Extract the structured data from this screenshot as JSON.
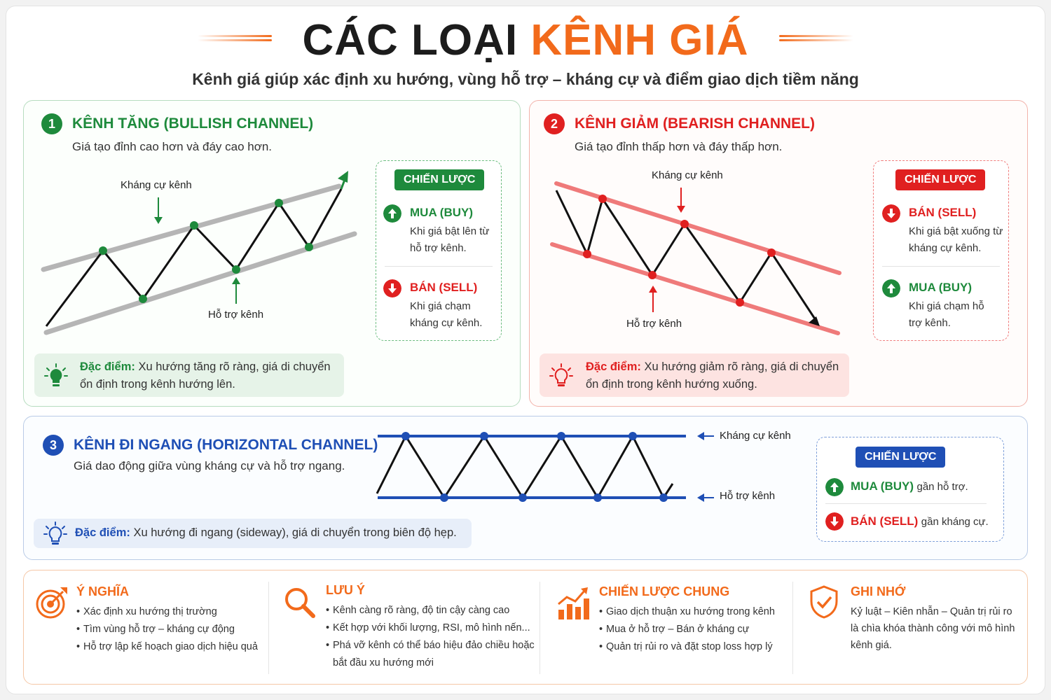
{
  "header": {
    "title_part1": "CÁC LOẠI",
    "title_part2": "KÊNH GIÁ",
    "subtitle": "Kênh giá giúp xác định xu hướng, vùng hỗ trợ – kháng cự và điểm giao dịch tiềm năng"
  },
  "colors": {
    "accent": "#f26a1b",
    "green": "#1e8a3c",
    "red": "#e02020",
    "blue": "#1f4fb5"
  },
  "bullish": {
    "number": "1",
    "title": "KÊNH TĂNG (BULLISH CHANNEL)",
    "description": "Giá tạo đỉnh cao hơn và đáy cao hơn.",
    "resistance_label": "Kháng cự kênh",
    "support_label": "Hỗ trợ kênh",
    "strategy": {
      "badge": "CHIẾN LƯỢC",
      "item1_title": "MUA (BUY)",
      "item1_text": "Khi giá bật lên từ hỗ trợ kênh.",
      "item2_title": "BÁN (SELL)",
      "item2_text": "Khi giá chạm kháng cự kênh."
    },
    "feature_label": "Đặc điểm:",
    "feature_text": "Xu hướng tăng rõ ràng, giá di chuyển ổn định trong kênh hướng lên."
  },
  "bearish": {
    "number": "2",
    "title": "KÊNH GIẢM (BEARISH CHANNEL)",
    "description": "Giá tạo đỉnh thấp hơn và đáy thấp hơn.",
    "resistance_label": "Kháng cự kênh",
    "support_label": "Hỗ trợ kênh",
    "strategy": {
      "badge": "CHIẾN LƯỢC",
      "item1_title": "BÁN (SELL)",
      "item1_text": "Khi giá bật xuống từ kháng cự kênh.",
      "item2_title": "MUA (BUY)",
      "item2_text": "Khi giá chạm hỗ trợ kênh."
    },
    "feature_label": "Đặc điểm:",
    "feature_text": "Xu hướng giảm rõ ràng, giá di chuyển ổn định trong kênh hướng xuống."
  },
  "horizontal": {
    "number": "3",
    "title": "KÊNH ĐI NGANG (HORIZONTAL CHANNEL)",
    "description": "Giá dao động giữa vùng kháng cự và hỗ trợ ngang.",
    "resistance_label": "Kháng cự kênh",
    "support_label": "Hỗ trợ kênh",
    "strategy": {
      "badge": "CHIẾN LƯỢC",
      "item1_title": "MUA (BUY)",
      "item1_text": "gần hỗ trợ.",
      "item2_title": "BÁN (SELL)",
      "item2_text": "gần kháng cự."
    },
    "feature_label": "Đặc điểm:",
    "feature_text": "Xu hướng đi ngang (sideway), giá di chuyển trong biên độ hẹp."
  },
  "summary": {
    "meaning": {
      "title": "Ý NGHĨA",
      "items": [
        "Xác định xu hướng thị trường",
        "Tìm vùng hỗ trợ – kháng cự động",
        "Hỗ trợ lập kế hoạch giao dịch hiệu quả"
      ]
    },
    "note": {
      "title": "LƯU Ý",
      "items": [
        "Kênh càng rõ ràng, độ tin cậy càng cao",
        "Kết hợp với khối lượng, RSI, mô hình nến...",
        "Phá vỡ kênh có thể báo hiệu đảo chiều hoặc bắt đầu xu hướng mới"
      ]
    },
    "strategy": {
      "title": "CHIẾN LƯỢC CHUNG",
      "items": [
        "Giao dịch thuận xu hướng trong kênh",
        "Mua ở hỗ trợ – Bán ở kháng cự",
        "Quản trị rủi ro và đặt stop loss hợp lý"
      ]
    },
    "remember": {
      "title": "GHI NHỚ",
      "text": "Kỷ luật – Kiên nhẫn – Quản trị rủi ro là chìa khóa thành công với mô hình kênh giá."
    }
  }
}
